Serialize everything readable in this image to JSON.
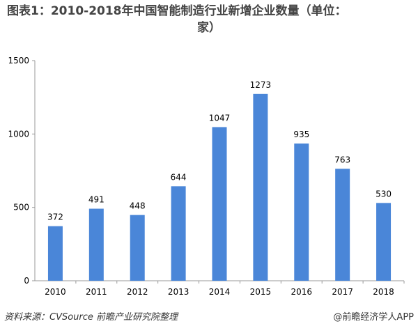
{
  "chart_data": {
    "type": "bar",
    "title_line1": "图表1：2010-2018年中国智能制造行业新增企业数量（单位：",
    "title_line2": "家）",
    "categories": [
      "2010",
      "2011",
      "2012",
      "2013",
      "2014",
      "2015",
      "2016",
      "2017",
      "2018"
    ],
    "values": [
      372,
      491,
      448,
      644,
      1047,
      1273,
      935,
      763,
      530
    ],
    "ylim": [
      0,
      1500
    ],
    "yticks": [
      0,
      500,
      1000,
      1500
    ],
    "bar_color": "#4a86d8",
    "grid": false,
    "legend": "none"
  },
  "footer": {
    "source": "资料来源：CVSource  前瞻产业研究院整理",
    "brand": "@前瞻经济学人APP"
  }
}
